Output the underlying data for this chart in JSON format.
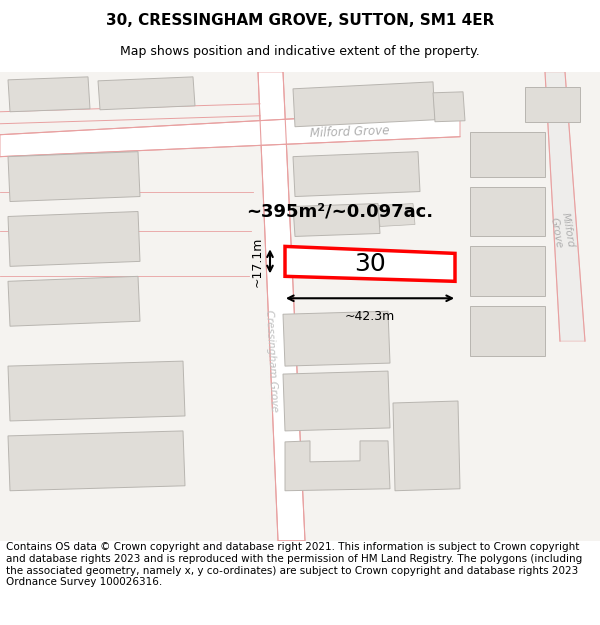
{
  "title": "30, CRESSINGHAM GROVE, SUTTON, SM1 4ER",
  "subtitle": "Map shows position and indicative extent of the property.",
  "area_text": "~395m²/~0.097ac.",
  "label_30": "30",
  "dim_width": "~42.3m",
  "dim_height": "~17.1m",
  "road_milford_horiz": "Milford Grove",
  "road_milford_diag": "Milford\nGrove",
  "road_cressingham": "Cressingham Grove",
  "footer": "Contains OS data © Crown copyright and database right 2021. This information is subject to Crown copyright and database rights 2023 and is reproduced with the permission of HM Land Registry. The polygons (including the associated geometry, namely x, y co-ordinates) are subject to Crown copyright and database rights 2023 Ordnance Survey 100026316.",
  "map_bg": "#f5f3f0",
  "building_fill": "#e0ddd8",
  "building_edge": "#b8b5b0",
  "road_fill": "#ffffff",
  "road_line": "#e8a0a0",
  "highlight_fill": "#ffffff",
  "highlight_edge": "#ff0000",
  "title_fontsize": 11,
  "subtitle_fontsize": 9,
  "footer_fontsize": 7.5
}
